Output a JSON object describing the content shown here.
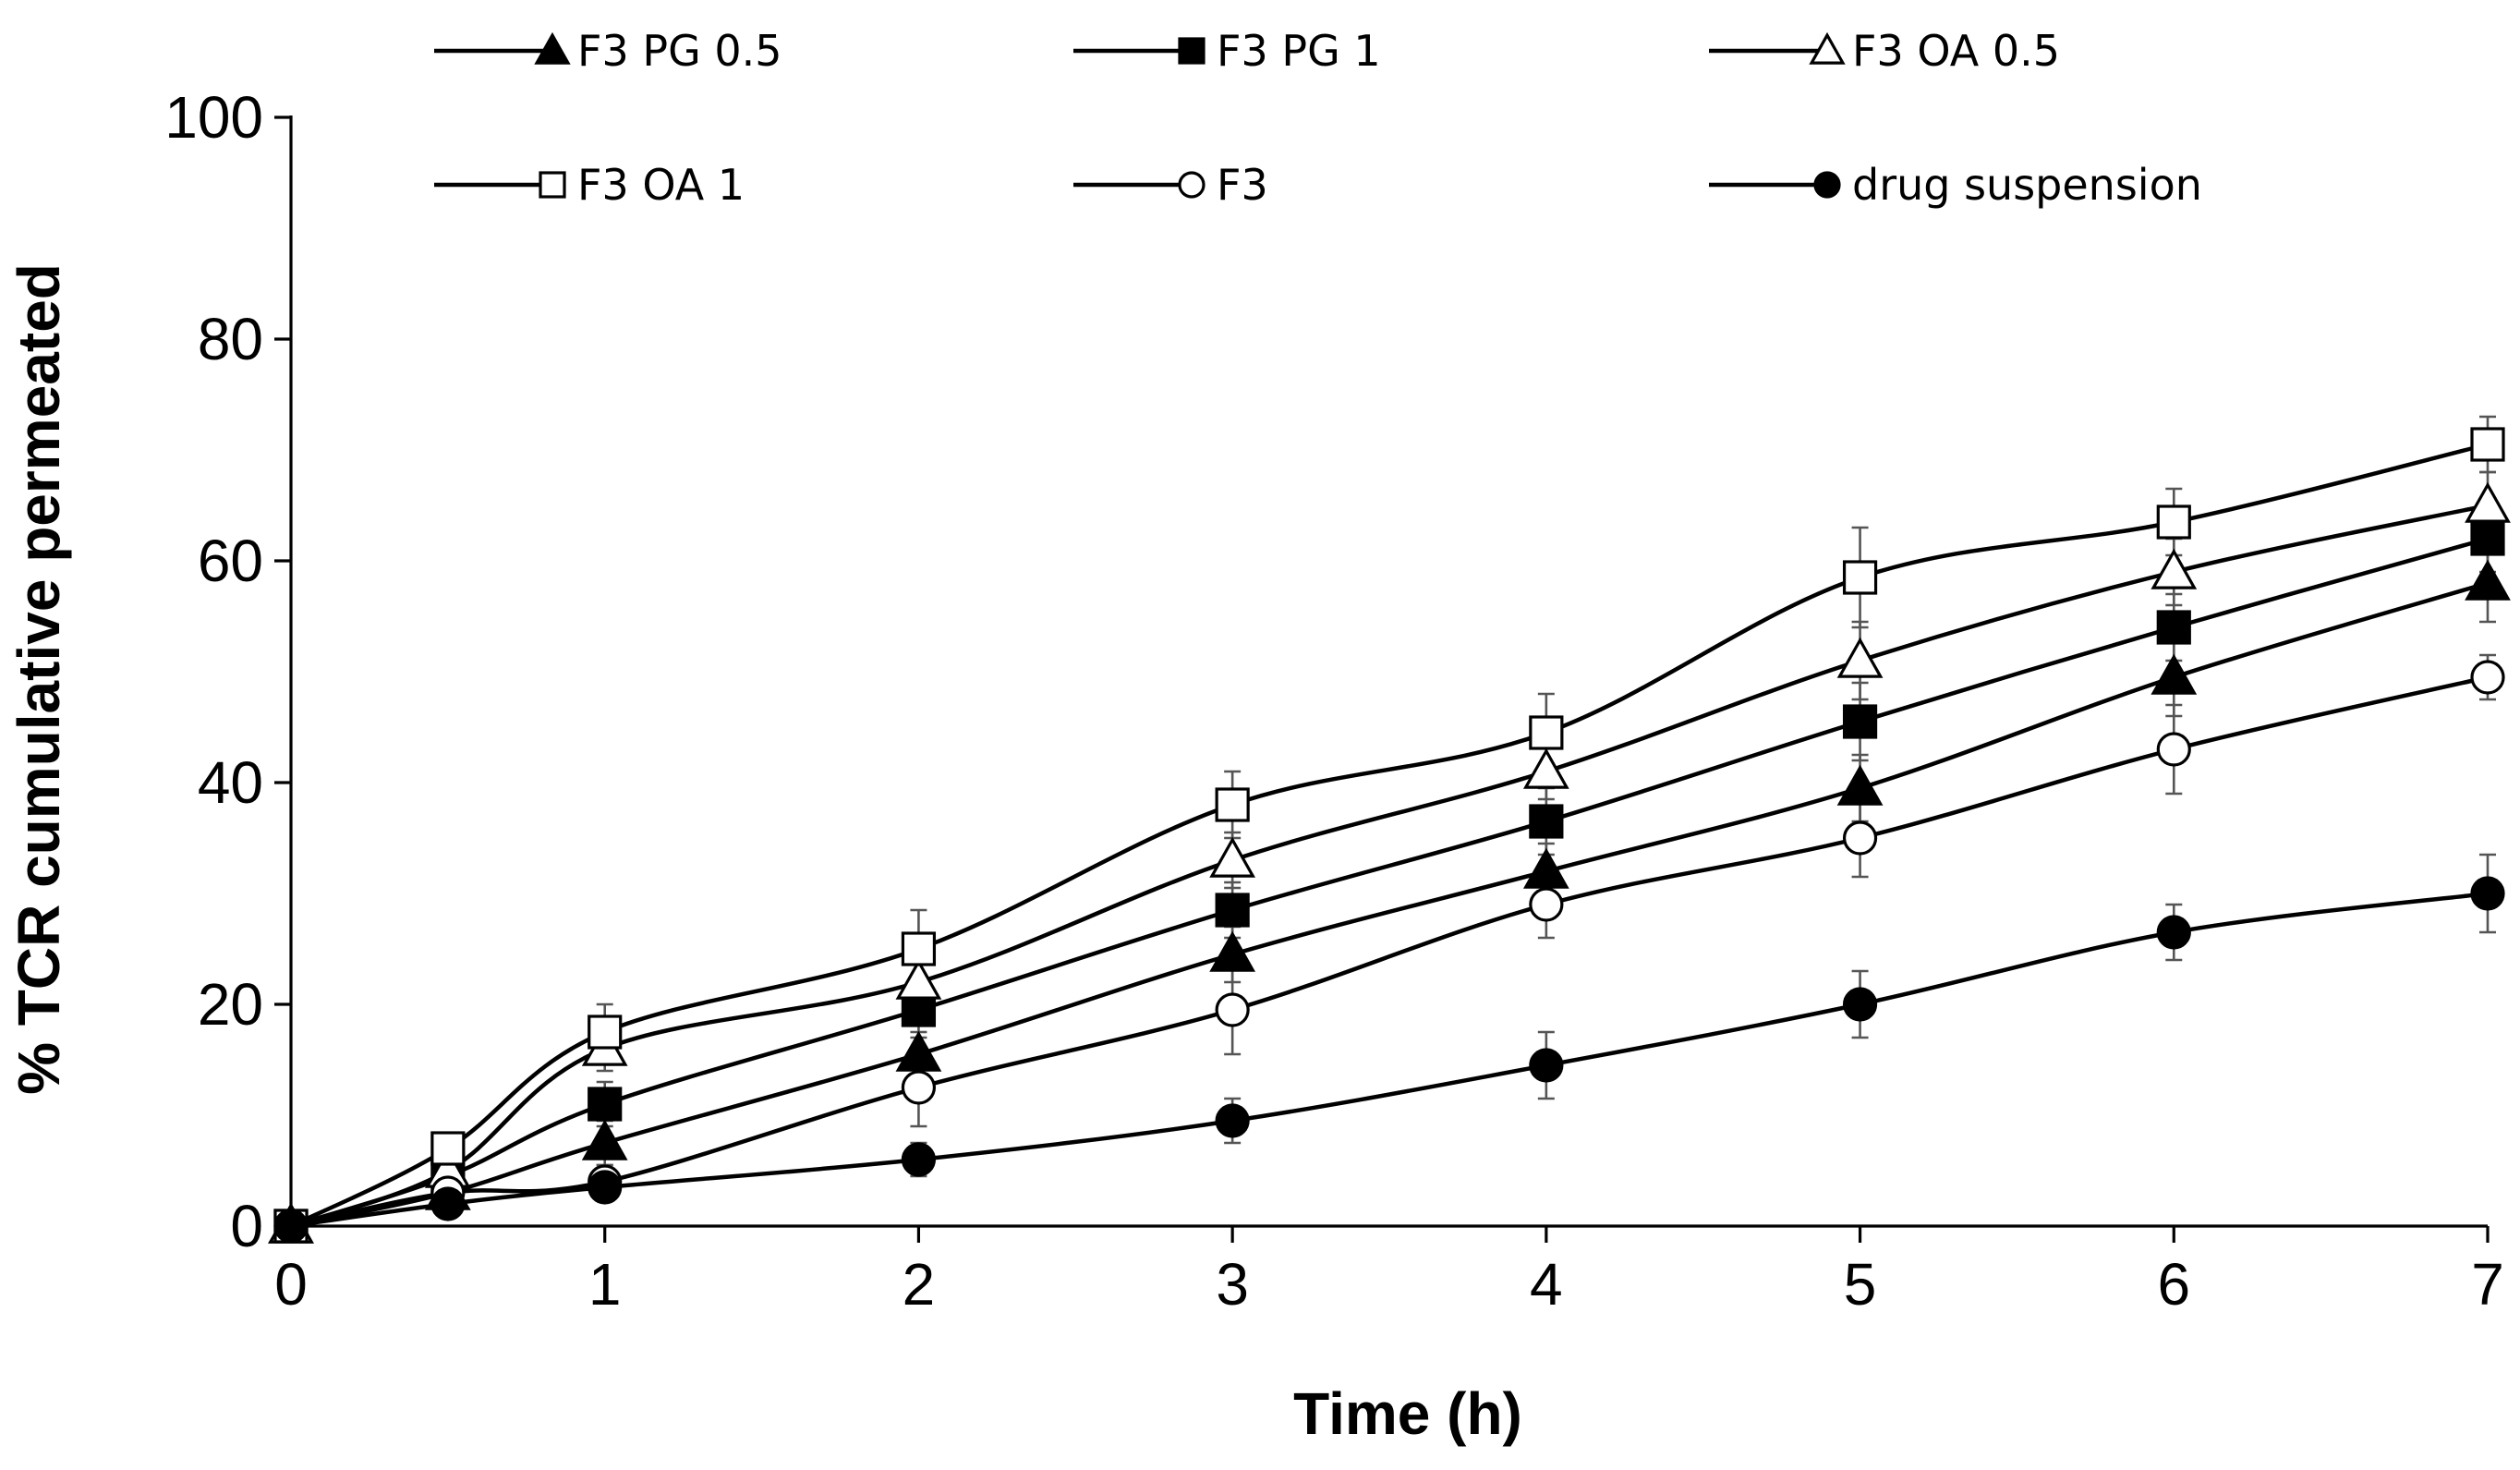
{
  "chart_data": {
    "type": "line",
    "title": "",
    "xlabel": "Time (h)",
    "ylabel": "% TCR cumulative permeated",
    "xlim": [
      0,
      7
    ],
    "ylim": [
      0,
      100
    ],
    "x": [
      0,
      0.5,
      1,
      2,
      3,
      4,
      5,
      6,
      7
    ],
    "xticks": [
      "0",
      "1",
      "2",
      "3",
      "4",
      "5",
      "6",
      "7"
    ],
    "yticks": [
      "0",
      "20",
      "40",
      "60",
      "80",
      "100"
    ],
    "legend_position": "top",
    "series": [
      {
        "name": "F3 PG 0.5",
        "marker": "triangle-filled",
        "values": [
          0,
          3,
          7.5,
          15.5,
          24.5,
          32,
          39.5,
          49.5,
          58
        ],
        "errors": [
          0,
          1,
          2,
          2,
          2.5,
          2.5,
          3,
          3.5,
          3.5
        ]
      },
      {
        "name": "F3 PG 1",
        "marker": "square-filled",
        "values": [
          0,
          4.5,
          11,
          19.5,
          28.5,
          36.5,
          45.5,
          54,
          62
        ],
        "errors": [
          0,
          1,
          2,
          2.5,
          2.5,
          3,
          3.5,
          3,
          3
        ]
      },
      {
        "name": "F3 OA 0.5",
        "marker": "triangle-open",
        "values": [
          0,
          5,
          16,
          22,
          33,
          41,
          51,
          59,
          65
        ],
        "errors": [
          0,
          1,
          2,
          2.5,
          2.5,
          2.5,
          3.5,
          3,
          3
        ]
      },
      {
        "name": "F3 OA 1",
        "marker": "square-open",
        "values": [
          0,
          7,
          17.5,
          25,
          38,
          44.5,
          58.5,
          63.5,
          70.5
        ],
        "errors": [
          0,
          1,
          2.5,
          3.5,
          3,
          3.5,
          4.5,
          3,
          2.5
        ]
      },
      {
        "name": "F3",
        "marker": "circle-open",
        "values": [
          0,
          3,
          4,
          12.5,
          19.5,
          29,
          35,
          43,
          49.5
        ],
        "errors": [
          0,
          1,
          1.5,
          3.5,
          4,
          3,
          3.5,
          4,
          2
        ]
      },
      {
        "name": "drug suspension",
        "marker": "circle-filled",
        "values": [
          0,
          2,
          3.5,
          6,
          9.5,
          14.5,
          20,
          26.5,
          30
        ],
        "errors": [
          0,
          0.5,
          1,
          1.5,
          2,
          3,
          3,
          2.5,
          3.5
        ]
      }
    ]
  }
}
